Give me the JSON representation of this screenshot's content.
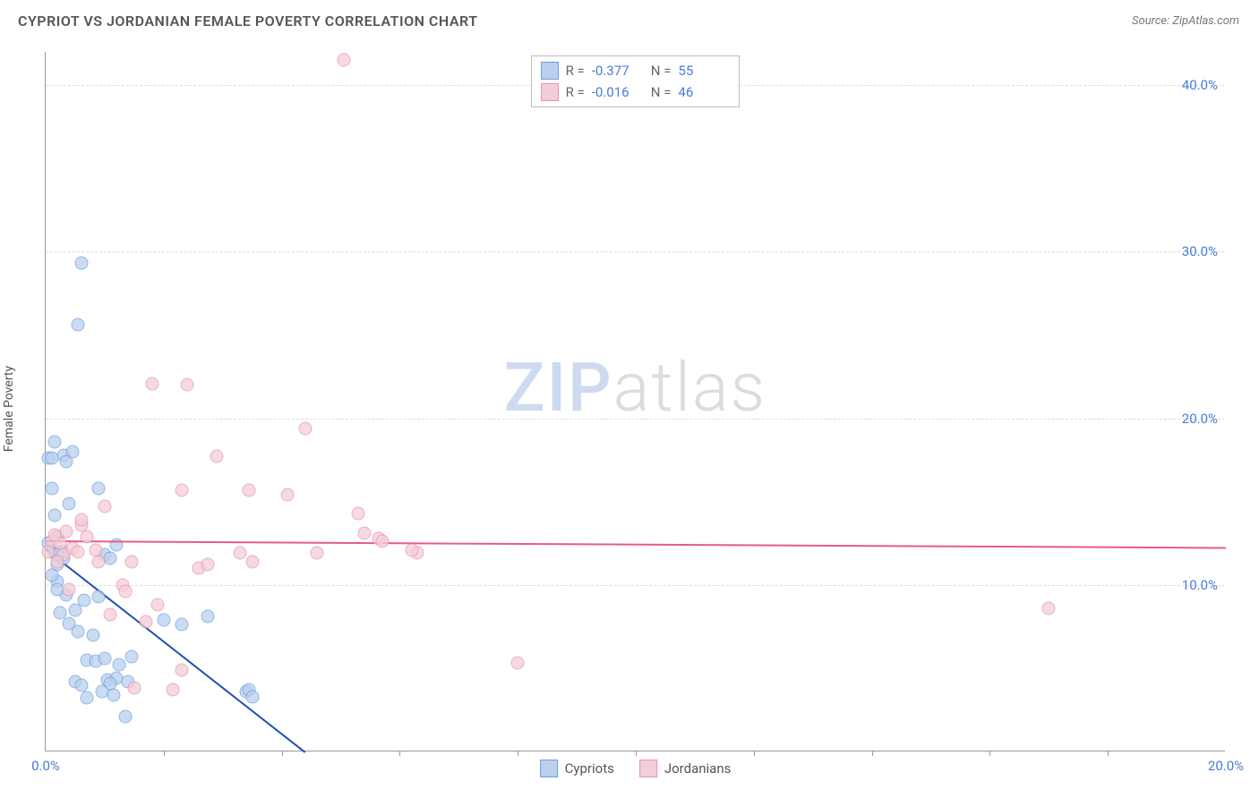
{
  "header": {
    "title": "CYPRIOT VS JORDANIAN FEMALE POVERTY CORRELATION CHART",
    "source": "Source: ZipAtlas.com"
  },
  "chart": {
    "type": "scatter",
    "ylabel": "Female Poverty",
    "xlim": [
      0,
      20
    ],
    "ylim": [
      0,
      42
    ],
    "xtick_labels": [
      "0.0%",
      "20.0%"
    ],
    "xtick_positions": [
      0,
      20
    ],
    "xtick_minor": [
      2,
      4,
      6,
      8,
      10,
      12,
      14,
      16,
      18
    ],
    "ytick_labels": [
      "10.0%",
      "20.0%",
      "30.0%",
      "40.0%"
    ],
    "ytick_positions": [
      10,
      20,
      30,
      40
    ],
    "grid_color": "#dddddd",
    "axis_color": "#999999",
    "tick_label_color": "#4a7bd8",
    "background_color": "#ffffff",
    "point_radius": 7.5,
    "series": [
      {
        "name": "Cypriots",
        "fill": "#b9d0ee",
        "stroke": "#6f9fdc",
        "trend_color": "#1f4fb5",
        "R": "-0.377",
        "N": "55",
        "trend": {
          "x1": 0,
          "y1": 12.2,
          "x2": 4.4,
          "y2": 0
        },
        "points": [
          [
            0.2,
            11.2
          ],
          [
            0.15,
            11.9
          ],
          [
            0.25,
            12.0
          ],
          [
            0.3,
            11.6
          ],
          [
            0.15,
            14.2
          ],
          [
            0.1,
            15.8
          ],
          [
            0.3,
            17.8
          ],
          [
            0.45,
            18.0
          ],
          [
            0.6,
            29.3
          ],
          [
            0.55,
            25.6
          ],
          [
            0.2,
            10.2
          ],
          [
            0.35,
            9.4
          ],
          [
            0.4,
            14.9
          ],
          [
            0.9,
            15.8
          ],
          [
            1.0,
            11.8
          ],
          [
            1.1,
            11.6
          ],
          [
            1.2,
            12.4
          ],
          [
            0.05,
            12.5
          ],
          [
            0.2,
            12.9
          ],
          [
            0.3,
            12.0
          ],
          [
            0.1,
            10.6
          ],
          [
            0.2,
            9.7
          ],
          [
            0.25,
            8.3
          ],
          [
            0.4,
            7.7
          ],
          [
            0.55,
            7.2
          ],
          [
            0.8,
            7.0
          ],
          [
            0.5,
            8.5
          ],
          [
            0.65,
            9.1
          ],
          [
            0.9,
            9.3
          ],
          [
            0.7,
            5.5
          ],
          [
            0.85,
            5.4
          ],
          [
            1.0,
            5.6
          ],
          [
            1.25,
            5.2
          ],
          [
            1.05,
            4.3
          ],
          [
            1.2,
            4.4
          ],
          [
            0.5,
            4.2
          ],
          [
            0.6,
            4.0
          ],
          [
            1.1,
            4.1
          ],
          [
            1.4,
            4.2
          ],
          [
            1.35,
            2.1
          ],
          [
            0.7,
            3.2
          ],
          [
            0.95,
            3.6
          ],
          [
            1.15,
            3.4
          ],
          [
            1.45,
            5.7
          ],
          [
            2.0,
            7.9
          ],
          [
            2.3,
            7.6
          ],
          [
            2.75,
            8.1
          ],
          [
            3.4,
            3.6
          ],
          [
            3.45,
            3.7
          ],
          [
            3.5,
            3.3
          ],
          [
            0.05,
            17.6
          ],
          [
            0.35,
            17.4
          ],
          [
            0.1,
            17.6
          ],
          [
            0.15,
            18.6
          ],
          [
            0.2,
            11.8
          ]
        ]
      },
      {
        "name": "Jordanians",
        "fill": "#f3cdd8",
        "stroke": "#e993ac",
        "trend_color": "#e65a8e",
        "R": "-0.016",
        "N": "46",
        "trend": {
          "x1": 0,
          "y1": 12.7,
          "x2": 20,
          "y2": 12.3
        },
        "points": [
          [
            0.1,
            12.6
          ],
          [
            0.25,
            12.5
          ],
          [
            0.3,
            11.8
          ],
          [
            0.45,
            12.2
          ],
          [
            0.7,
            12.9
          ],
          [
            0.85,
            12.1
          ],
          [
            0.6,
            13.6
          ],
          [
            0.15,
            13.0
          ],
          [
            0.2,
            11.4
          ],
          [
            1.0,
            14.7
          ],
          [
            1.3,
            10.0
          ],
          [
            1.35,
            9.6
          ],
          [
            1.45,
            11.4
          ],
          [
            1.1,
            8.2
          ],
          [
            1.8,
            22.1
          ],
          [
            2.4,
            22.0
          ],
          [
            2.3,
            15.7
          ],
          [
            2.9,
            17.7
          ],
          [
            2.6,
            11.0
          ],
          [
            2.75,
            11.2
          ],
          [
            3.3,
            11.9
          ],
          [
            3.45,
            15.7
          ],
          [
            3.5,
            11.4
          ],
          [
            4.1,
            15.4
          ],
          [
            4.6,
            11.9
          ],
          [
            4.4,
            19.4
          ],
          [
            5.4,
            13.1
          ],
          [
            5.65,
            12.8
          ],
          [
            5.7,
            12.6
          ],
          [
            5.3,
            14.3
          ],
          [
            5.05,
            41.5
          ],
          [
            6.3,
            11.9
          ],
          [
            6.2,
            12.1
          ],
          [
            8.0,
            5.3
          ],
          [
            17.0,
            8.6
          ],
          [
            1.5,
            3.8
          ],
          [
            2.15,
            3.7
          ],
          [
            1.7,
            7.8
          ],
          [
            1.9,
            8.8
          ],
          [
            2.3,
            4.9
          ],
          [
            0.4,
            9.7
          ],
          [
            0.6,
            13.9
          ],
          [
            0.35,
            13.2
          ],
          [
            0.55,
            12.0
          ],
          [
            0.9,
            11.4
          ],
          [
            0.05,
            12.0
          ]
        ]
      }
    ],
    "watermark": {
      "label1": "ZIP",
      "label2": "atlas"
    },
    "legend_top": {
      "r_label": "R =",
      "n_label": "N ="
    },
    "legend_bottom": [
      {
        "label": "Cypriots"
      },
      {
        "label": "Jordanians"
      }
    ]
  }
}
